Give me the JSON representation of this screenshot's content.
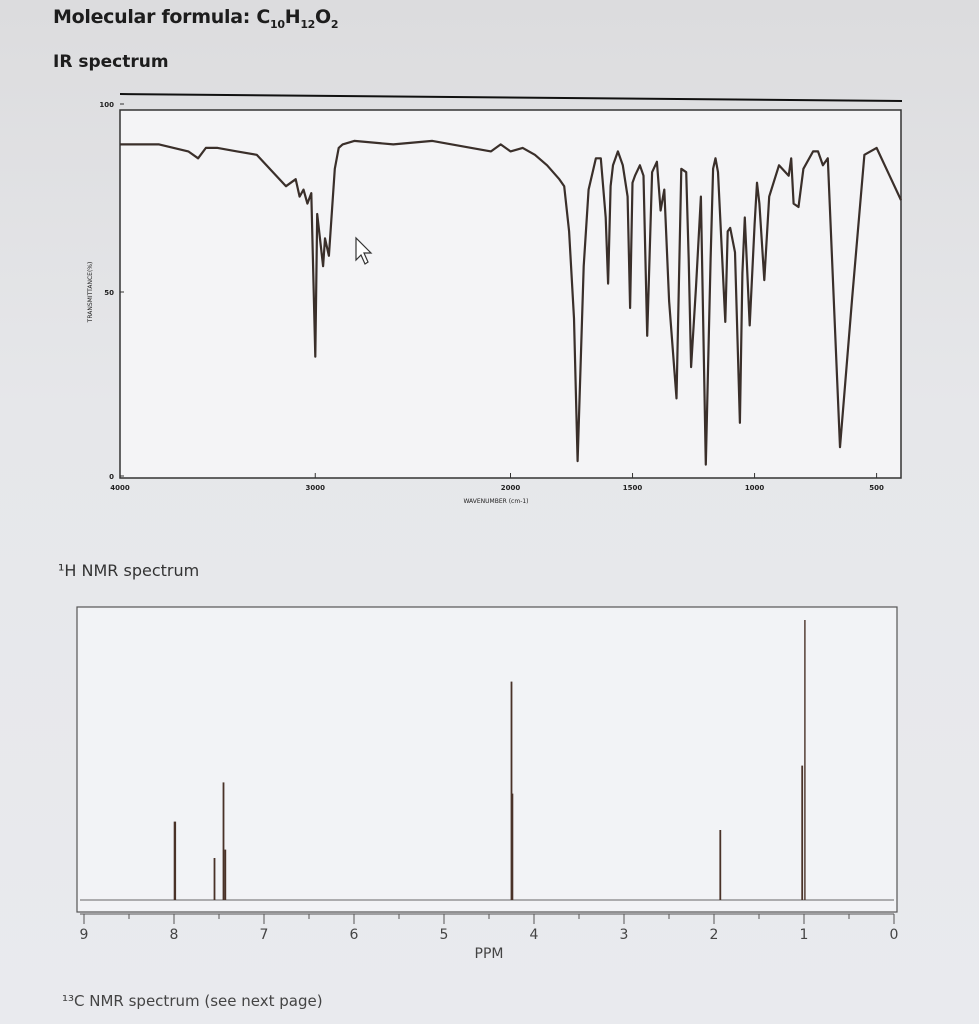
{
  "page": {
    "formula_prefix": "Molecular formula: C",
    "formula_c": "10",
    "formula_h_prefix": "H",
    "formula_h": "12",
    "formula_o_prefix": "O",
    "formula_o": "2",
    "ir_title": "IR spectrum",
    "nmr_title": "¹H NMR spectrum",
    "c13_note": "¹³C NMR spectrum (see next page)"
  },
  "chart_data": [
    {
      "type": "line",
      "title": "IR spectrum",
      "xlabel": "WAVENUMBER (cm-1)",
      "ylabel": "TRANSMITTANCE(%)",
      "xlim": [
        4000,
        400
      ],
      "ylim": [
        0,
        100
      ],
      "x_ticks": [
        "4000",
        "3000",
        "2000",
        "1500",
        "1000",
        "500"
      ],
      "y_ticks": [
        "0",
        "50",
        "100"
      ],
      "series": [
        {
          "x": [
            4000,
            3800,
            3650,
            3600,
            3560,
            3500,
            3400,
            3300,
            3150,
            3100,
            3080,
            3060,
            3040,
            3020,
            3000,
            2990,
            2960,
            2950,
            2930,
            2900,
            2880,
            2860,
            2800,
            2600,
            2400,
            2200,
            2100,
            2050,
            2000,
            1950,
            1900,
            1850,
            1800,
            1780,
            1760,
            1740,
            1725,
            1700,
            1680,
            1650,
            1630,
            1610,
            1600,
            1590,
            1580,
            1560,
            1540,
            1520,
            1510,
            1500,
            1490,
            1470,
            1455,
            1440,
            1420,
            1400,
            1385,
            1370,
            1350,
            1320,
            1300,
            1280,
            1270,
            1260,
            1240,
            1220,
            1200,
            1180,
            1170,
            1160,
            1150,
            1120,
            1110,
            1100,
            1080,
            1060,
            1050,
            1040,
            1020,
            1000,
            990,
            980,
            960,
            940,
            900,
            860,
            850,
            840,
            820,
            800,
            760,
            740,
            720,
            700,
            650,
            600,
            550,
            500,
            400
          ],
          "y": [
            95,
            95,
            93,
            91,
            94,
            94,
            93,
            92,
            83,
            85,
            80,
            82,
            78,
            81,
            34,
            75,
            60,
            68,
            63,
            88,
            94,
            95,
            96,
            95,
            96,
            94,
            93,
            95,
            93,
            94,
            92,
            89,
            85,
            83,
            70,
            45,
            4,
            60,
            82,
            91,
            91,
            74,
            55,
            83,
            89,
            93,
            89,
            80,
            48,
            84,
            86,
            89,
            86,
            40,
            87,
            90,
            76,
            82,
            50,
            22,
            88,
            87,
            62,
            31,
            54,
            80,
            3,
            62,
            88,
            91,
            87,
            44,
            70,
            71,
            64,
            15,
            58,
            74,
            43,
            72,
            84,
            78,
            56,
            80,
            89,
            86,
            91,
            78,
            77,
            88,
            93,
            93,
            89,
            91,
            8,
            51,
            92,
            94,
            79
          ]
        }
      ]
    },
    {
      "type": "line",
      "title": "¹H NMR spectrum",
      "xlabel": "PPM",
      "ylabel": "",
      "xlim": [
        9,
        0
      ],
      "x_ticks": [
        "9",
        "8",
        "7",
        "6",
        "5",
        "4",
        "3",
        "2",
        "1",
        "0"
      ],
      "peaks": [
        {
          "ppm": 7.99,
          "height": 0.28,
          "width": 0.04
        },
        {
          "ppm": 7.55,
          "height": 0.15,
          "width": 0.03
        },
        {
          "ppm": 7.45,
          "height": 0.42,
          "width": 0.03
        },
        {
          "ppm": 7.43,
          "height": 0.18,
          "width": 0.03
        },
        {
          "ppm": 4.25,
          "height": 0.78,
          "width": 0.03
        },
        {
          "ppm": 4.24,
          "height": 0.38,
          "width": 0.03
        },
        {
          "ppm": 1.93,
          "height": 0.25,
          "width": 0.03
        },
        {
          "ppm": 0.99,
          "height": 1.0,
          "width": 0.02
        },
        {
          "ppm": 1.02,
          "height": 0.48,
          "width": 0.03
        }
      ]
    }
  ]
}
